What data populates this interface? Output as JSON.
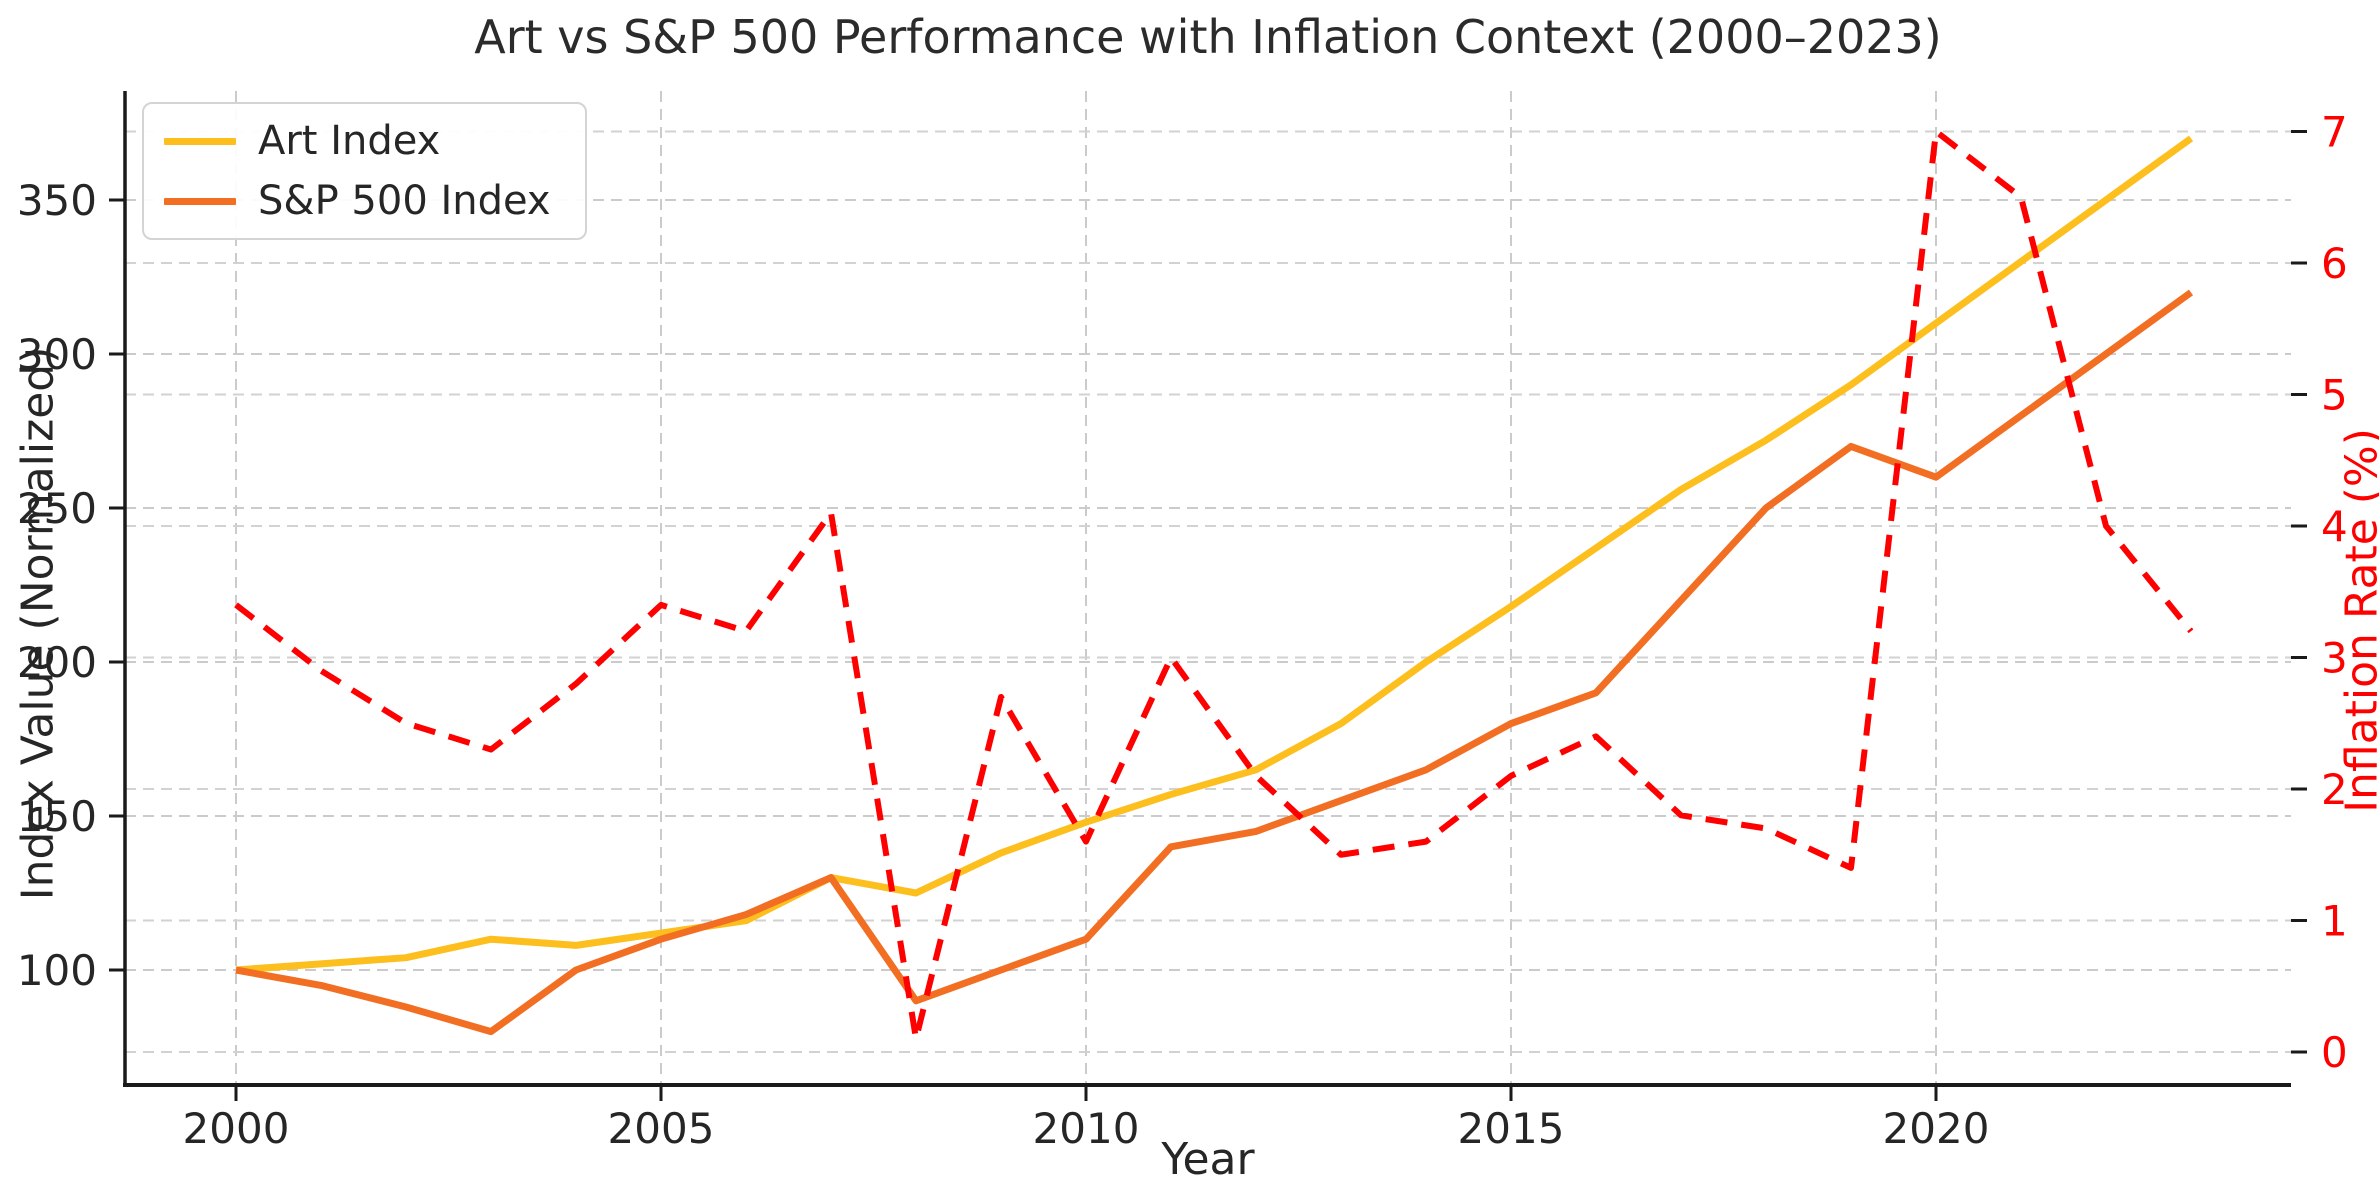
{
  "chart_data": {
    "type": "line",
    "title": "Art vs S&P 500 Performance with Inflation Context (2000–2023)",
    "xlabel": "Year",
    "x": [
      2000,
      2001,
      2002,
      2003,
      2004,
      2005,
      2006,
      2007,
      2008,
      2009,
      2010,
      2011,
      2012,
      2013,
      2014,
      2015,
      2016,
      2017,
      2018,
      2019,
      2020,
      2021,
      2022,
      2023
    ],
    "x_ticks": [
      2000,
      2005,
      2010,
      2015,
      2020
    ],
    "left_axis": {
      "label": "Index Value (Normalized)",
      "ticks": [
        100,
        150,
        200,
        250,
        300,
        350
      ],
      "tick_color": "#262626"
    },
    "right_axis": {
      "label": "Inflation Rate (%)",
      "ticks": [
        0,
        1,
        2,
        3,
        4,
        5,
        6,
        7
      ],
      "tick_color": "#ff0000"
    },
    "grid": "dashed, both axes, light gray",
    "legend_position": "upper left",
    "series": [
      {
        "name": "Art Index",
        "axis": "left",
        "style": "solid",
        "color": "#fdbf1e",
        "values": [
          100,
          102,
          104,
          110,
          108,
          112,
          116,
          130,
          125,
          138,
          148,
          157,
          165,
          180,
          200,
          218,
          237,
          256,
          272,
          290,
          310,
          330,
          350,
          370
        ]
      },
      {
        "name": "S&P 500 Index",
        "axis": "left",
        "style": "solid",
        "color": "#f26e22",
        "values": [
          100,
          95,
          88,
          80,
          100,
          110,
          118,
          130,
          90,
          100,
          110,
          140,
          145,
          155,
          165,
          180,
          190,
          220,
          250,
          270,
          260,
          280,
          300,
          320
        ]
      },
      {
        "name": "Inflation Rate",
        "axis": "right",
        "style": "dashed",
        "color": "#ff0000",
        "values": [
          3.4,
          2.9,
          2.5,
          2.3,
          2.8,
          3.4,
          3.2,
          4.1,
          0.1,
          2.7,
          1.6,
          3.0,
          2.1,
          1.5,
          1.6,
          2.1,
          2.4,
          1.8,
          1.7,
          1.4,
          7.0,
          6.5,
          4.0,
          3.2
        ]
      }
    ]
  }
}
